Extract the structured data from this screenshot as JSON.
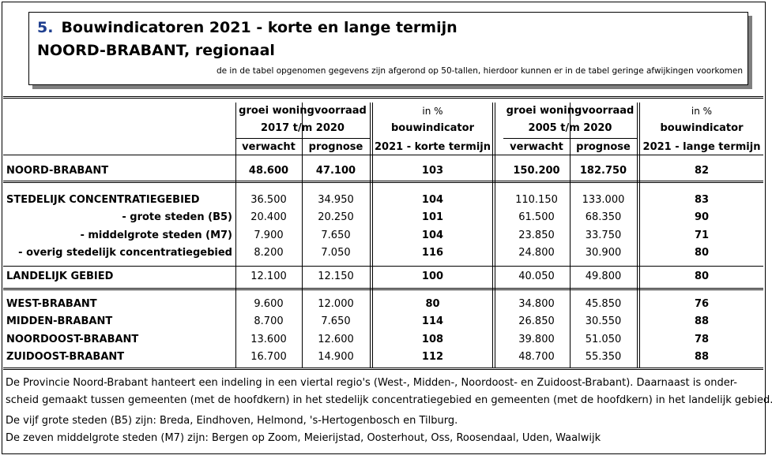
{
  "title": {
    "number": "5.",
    "line1": "Bouwindicatoren 2021 - korte en lange termijn",
    "line2": "NOORD-BRABANT, regionaal",
    "note": "de in de tabel opgenomen gegevens zijn afgerond op 50-tallen, hierdoor kunnen er in de tabel geringe afwijkingen voorkomen"
  },
  "headers": {
    "group1_a": "groei woningvoorraad",
    "group1_b": "2017 t/m 2020",
    "group1_verwacht": "verwacht",
    "group1_prognose": "prognose",
    "ind1_a": "in %",
    "ind1_b": "bouwindicator",
    "ind1_c": "2021 - korte termijn",
    "group2_a": "groei woningvoorraad",
    "group2_b": "2005 t/m 2020",
    "group2_verwacht": "verwacht",
    "group2_prognose": "prognose",
    "ind2_a": "in %",
    "ind2_b": "bouwindicator",
    "ind2_c": "2021 - lange termijn"
  },
  "rows": [
    {
      "label": "NOORD-BRABANT",
      "v1": "48.600",
      "p1": "47.100",
      "i1": "103",
      "v2": "150.200",
      "p2": "182.750",
      "i2": "82"
    },
    {
      "label": "STEDELIJK CONCENTRATIEGEBIED",
      "v1": "36.500",
      "p1": "34.950",
      "i1": "104",
      "v2": "110.150",
      "p2": "133.000",
      "i2": "83"
    },
    {
      "label": "- grote steden (B5)",
      "v1": "20.400",
      "p1": "20.250",
      "i1": "101",
      "v2": "61.500",
      "p2": "68.350",
      "i2": "90"
    },
    {
      "label": "- middelgrote steden (M7)",
      "v1": "7.900",
      "p1": "7.650",
      "i1": "104",
      "v2": "23.850",
      "p2": "33.750",
      "i2": "71"
    },
    {
      "label": "- overig stedelijk concentratiegebied",
      "v1": "8.200",
      "p1": "7.050",
      "i1": "116",
      "v2": "24.800",
      "p2": "30.900",
      "i2": "80"
    },
    {
      "label": "LANDELIJK GEBIED",
      "v1": "12.100",
      "p1": "12.150",
      "i1": "100",
      "v2": "40.050",
      "p2": "49.800",
      "i2": "80"
    },
    {
      "label": "WEST-BRABANT",
      "v1": "9.600",
      "p1": "12.000",
      "i1": "80",
      "v2": "34.800",
      "p2": "45.850",
      "i2": "76"
    },
    {
      "label": "MIDDEN-BRABANT",
      "v1": "8.700",
      "p1": "7.650",
      "i1": "114",
      "v2": "26.850",
      "p2": "30.550",
      "i2": "88"
    },
    {
      "label": "NOORDOOST-BRABANT",
      "v1": "13.600",
      "p1": "12.600",
      "i1": "108",
      "v2": "39.800",
      "p2": "51.050",
      "i2": "78"
    },
    {
      "label": "ZUIDOOST-BRABANT",
      "v1": "16.700",
      "p1": "14.900",
      "i1": "112",
      "v2": "48.700",
      "p2": "55.350",
      "i2": "88"
    }
  ],
  "notes": [
    "De Provincie Noord-Brabant hanteert een indeling in een viertal regio's (West-, Midden-, Noordoost- en Zuidoost-Brabant). Daarnaast is onder-",
    "scheid gemaakt tussen gemeenten (met de hoofdkern) in het stedelijk concentratiegebied en gemeenten (met de hoofdkern) in het landelijk gebied.",
    "De vijf grote steden (B5)  zijn: Breda, Eindhoven, Helmond, 's-Hertogenbosch en Tilburg.",
    "De zeven middelgrote steden (M7) zijn: Bergen op Zoom, Meierijstad, Oosterhout, Oss, Roosendaal, Uden, Waalwijk"
  ]
}
